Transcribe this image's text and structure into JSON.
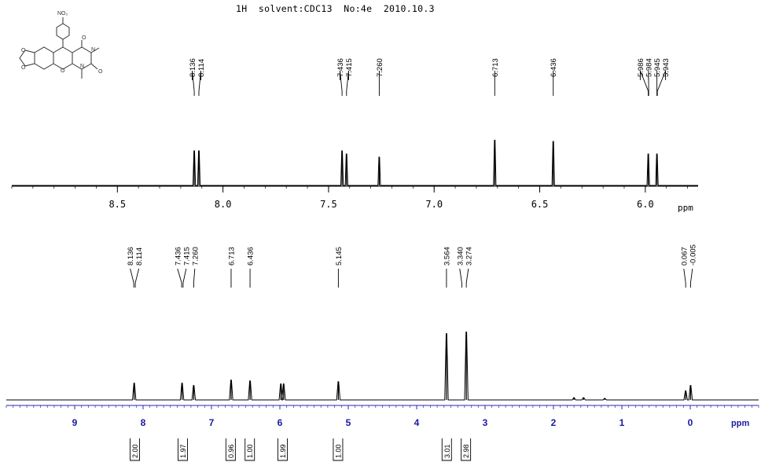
{
  "header": {
    "title": "1H  solvent:CDC13  No:4e  2010.10.3"
  },
  "structure": {
    "substituent_label": "NO₂"
  },
  "chart_data": [
    {
      "type": "line",
      "title": "",
      "xlabel": "ppm",
      "xlim": [
        9.0,
        5.75
      ],
      "x_reversed": true,
      "tick_labels": [
        "8.5",
        "8.0",
        "7.5",
        "7.0",
        "6.5",
        "6.0"
      ],
      "tick_values": [
        8.5,
        8.0,
        7.5,
        7.0,
        6.5,
        6.0
      ],
      "peak_labels": [
        "8.136",
        "8.114",
        "7.436",
        "7.415",
        "7.260",
        "6.713",
        "6.436",
        "5.986",
        "5.984",
        "5.945",
        "5.943"
      ],
      "peaks": [
        {
          "ppm": 8.136,
          "height": 0.55
        },
        {
          "ppm": 8.114,
          "height": 0.55
        },
        {
          "ppm": 7.436,
          "height": 0.55
        },
        {
          "ppm": 7.415,
          "height": 0.5
        },
        {
          "ppm": 7.26,
          "height": 0.45
        },
        {
          "ppm": 6.713,
          "height": 0.72
        },
        {
          "ppm": 6.436,
          "height": 0.7
        },
        {
          "ppm": 5.986,
          "height": 0.5
        },
        {
          "ppm": 5.945,
          "height": 0.5
        }
      ]
    },
    {
      "type": "line",
      "title": "",
      "xlabel": "ppm",
      "xlim": [
        10.0,
        -1.0
      ],
      "x_reversed": true,
      "tick_labels": [
        "9",
        "8",
        "7",
        "6",
        "5",
        "4",
        "3",
        "2",
        "1",
        "0"
      ],
      "tick_values": [
        9,
        8,
        7,
        6,
        5,
        4,
        3,
        2,
        1,
        0
      ],
      "peak_labels": [
        "8.136",
        "8.114",
        "7.436",
        "7.415",
        "7.260",
        "6.713",
        "6.436",
        "5.145",
        "3.564",
        "3.340",
        "3.274",
        "0.067",
        "-0.005"
      ],
      "peaks": [
        {
          "ppm": 8.13,
          "height": 0.22
        },
        {
          "ppm": 7.43,
          "height": 0.22
        },
        {
          "ppm": 7.26,
          "height": 0.19
        },
        {
          "ppm": 6.713,
          "height": 0.26
        },
        {
          "ppm": 6.436,
          "height": 0.25
        },
        {
          "ppm": 5.986,
          "height": 0.21
        },
        {
          "ppm": 5.945,
          "height": 0.21
        },
        {
          "ppm": 5.145,
          "height": 0.24
        },
        {
          "ppm": 3.564,
          "height": 0.87
        },
        {
          "ppm": 3.274,
          "height": 0.89
        },
        {
          "ppm": 1.7,
          "height": 0.03
        },
        {
          "ppm": 1.56,
          "height": 0.03
        },
        {
          "ppm": 1.25,
          "height": 0.02
        },
        {
          "ppm": 0.067,
          "height": 0.12
        },
        {
          "ppm": -0.005,
          "height": 0.19
        }
      ],
      "integrations": [
        {
          "ppm": 8.12,
          "value": "2.00"
        },
        {
          "ppm": 7.42,
          "value": "1.97"
        },
        {
          "ppm": 6.72,
          "value": "0.96"
        },
        {
          "ppm": 6.44,
          "value": "1.00"
        },
        {
          "ppm": 5.96,
          "value": "1.99"
        },
        {
          "ppm": 5.15,
          "value": "1.00"
        },
        {
          "ppm": 3.56,
          "value": "3.01"
        },
        {
          "ppm": 3.28,
          "value": "2.98"
        }
      ]
    }
  ]
}
